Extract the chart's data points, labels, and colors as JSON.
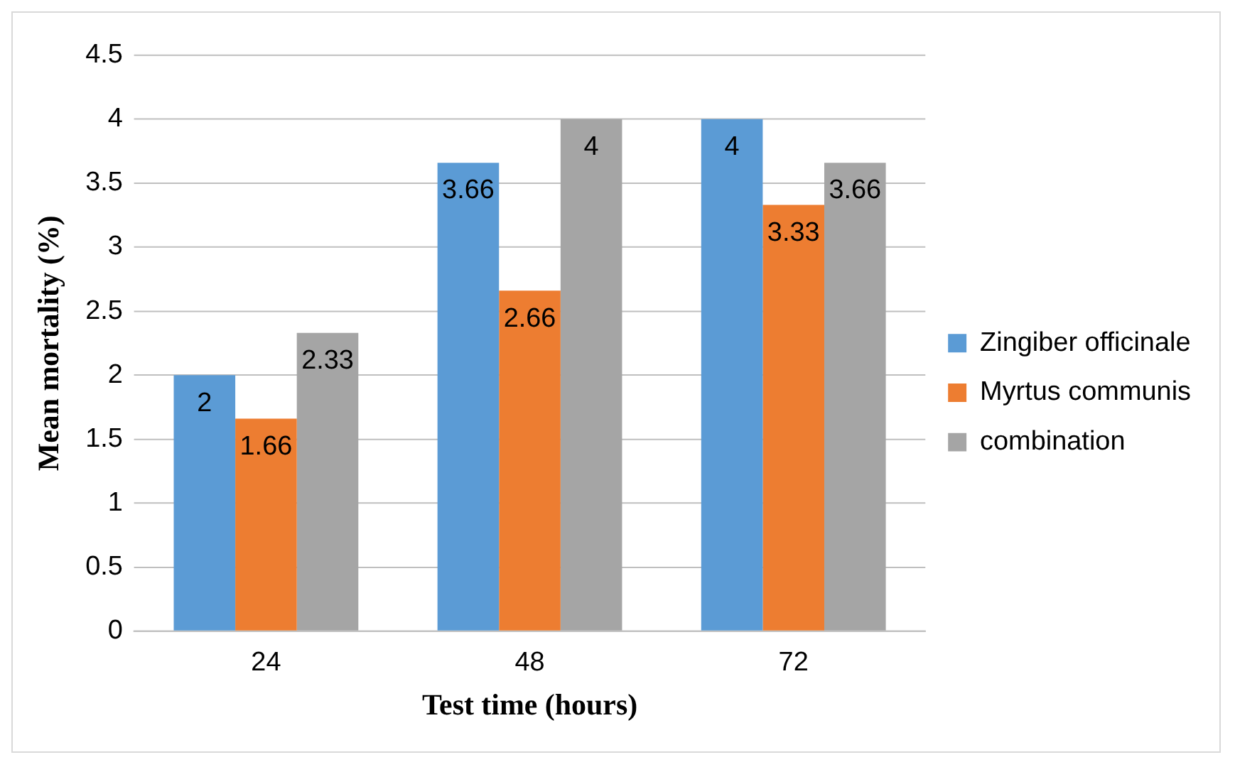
{
  "chart_data": {
    "type": "bar",
    "xlabel": "Test time (hours)",
    "ylabel": "Mean mortality (%)",
    "categories": [
      "24",
      "48",
      "72"
    ],
    "series": [
      {
        "name": "Zingiber officinale",
        "color": "#5b9bd5",
        "values": [
          2,
          3.66,
          4
        ]
      },
      {
        "name": "Myrtus communis",
        "color": "#ed7d31",
        "values": [
          1.66,
          2.66,
          3.33
        ]
      },
      {
        "name": "combination",
        "color": "#a5a5a5",
        "values": [
          2.33,
          4,
          3.66
        ]
      }
    ],
    "ylim": [
      0,
      4.5
    ],
    "yticks": [
      0,
      0.5,
      1,
      1.5,
      2,
      2.5,
      3,
      3.5,
      4,
      4.5
    ],
    "grid": "y",
    "legend": "right",
    "data_labels": true
  }
}
